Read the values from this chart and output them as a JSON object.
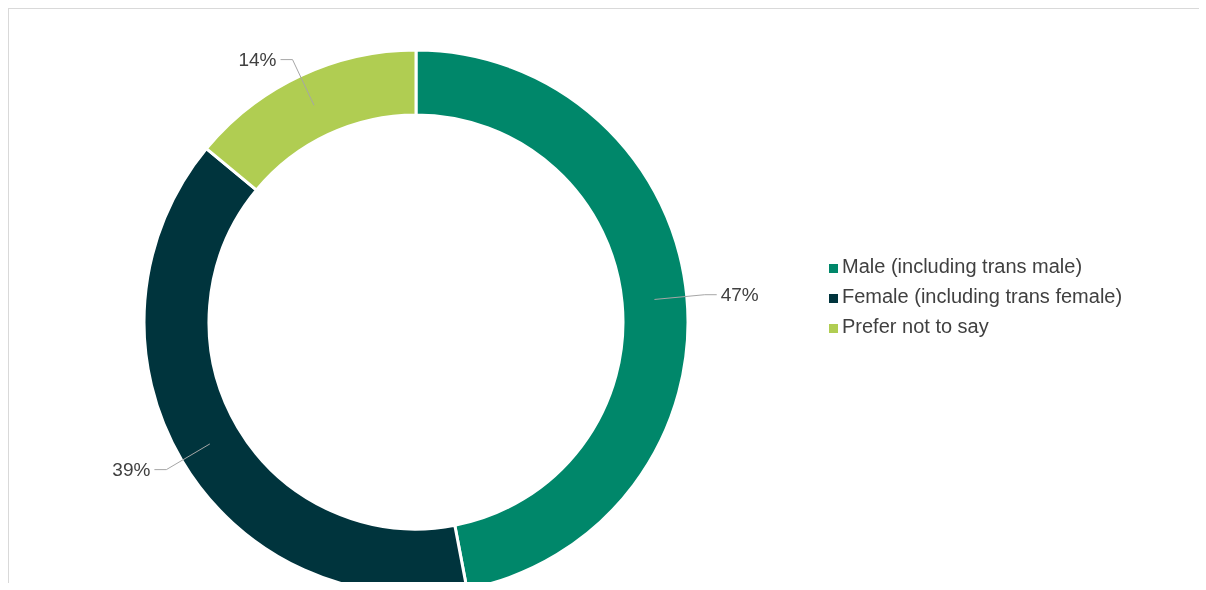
{
  "chart_data": {
    "type": "donut",
    "categories": [
      "Male (including trans male)",
      "Female (including trans female)",
      "Prefer not to say"
    ],
    "values": [
      47,
      39,
      14
    ],
    "colors": [
      "#00876a",
      "#00343d",
      "#b0cd52"
    ],
    "value_labels": [
      "47%",
      "39%",
      "14%"
    ],
    "legend": "right"
  }
}
